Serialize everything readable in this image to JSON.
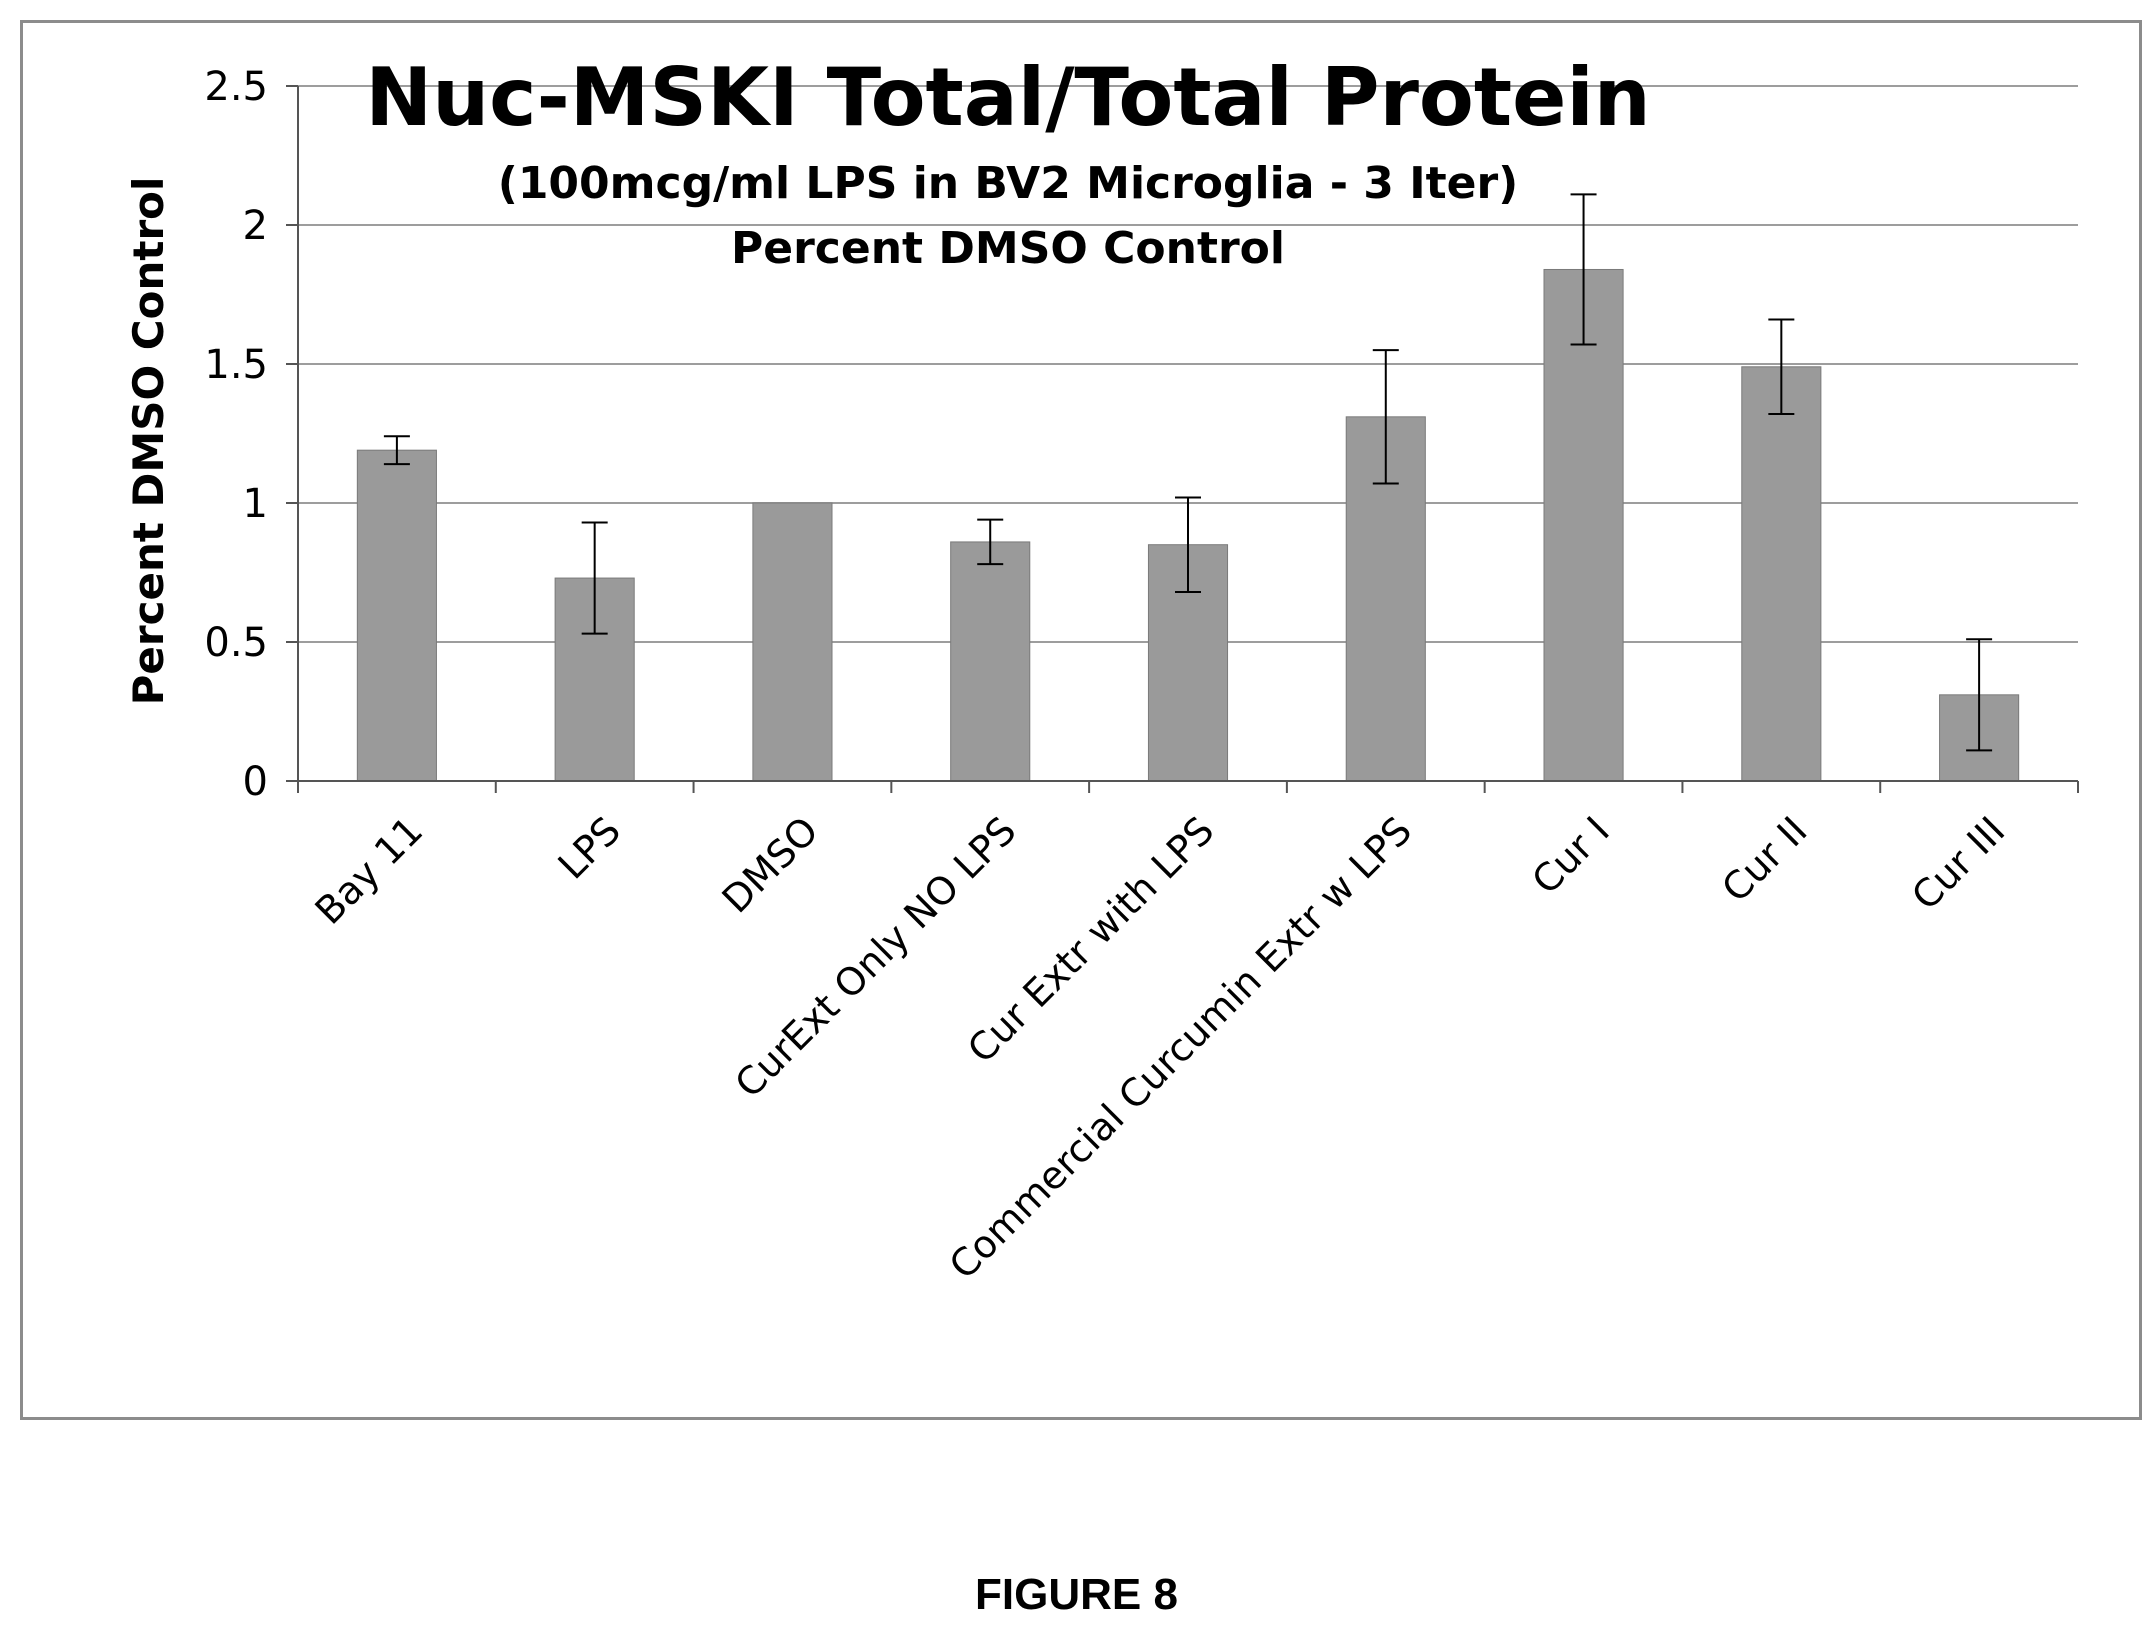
{
  "figure_caption": "FIGURE 8",
  "colors": {
    "bar": "#9a9a9a",
    "bar_edge": "#7a7a7a",
    "grid": "#9d9d9d",
    "axis": "#555555",
    "error_bar": "#000000"
  },
  "chart_data": {
    "type": "bar",
    "title": "Nuc-MSKI Total/Total Protein",
    "subtitle_line1": "(100mcg/ml LPS in BV2 Microglia - 3 Iter)",
    "subtitle_line2": "Percent DMSO Control",
    "xlabel": "",
    "ylabel": "Percent DMSO Control",
    "ylim": [
      0,
      2.5
    ],
    "yticks": [
      "0",
      "0.5",
      "1",
      "1.5",
      "2",
      "2.5"
    ],
    "grid": true,
    "categories": [
      "Bay 11",
      "LPS",
      "DMSO",
      "CurExt Only NO LPS",
      "Cur Extr with LPS",
      "Commercial Curcumin Extr w LPS",
      "Cur I",
      "Cur II",
      "Cur III"
    ],
    "values": [
      1.19,
      0.73,
      1.0,
      0.86,
      0.85,
      1.31,
      1.84,
      1.49,
      0.31
    ],
    "error": [
      0.05,
      0.2,
      0.0,
      0.08,
      0.17,
      0.24,
      0.27,
      0.17,
      0.2
    ]
  }
}
